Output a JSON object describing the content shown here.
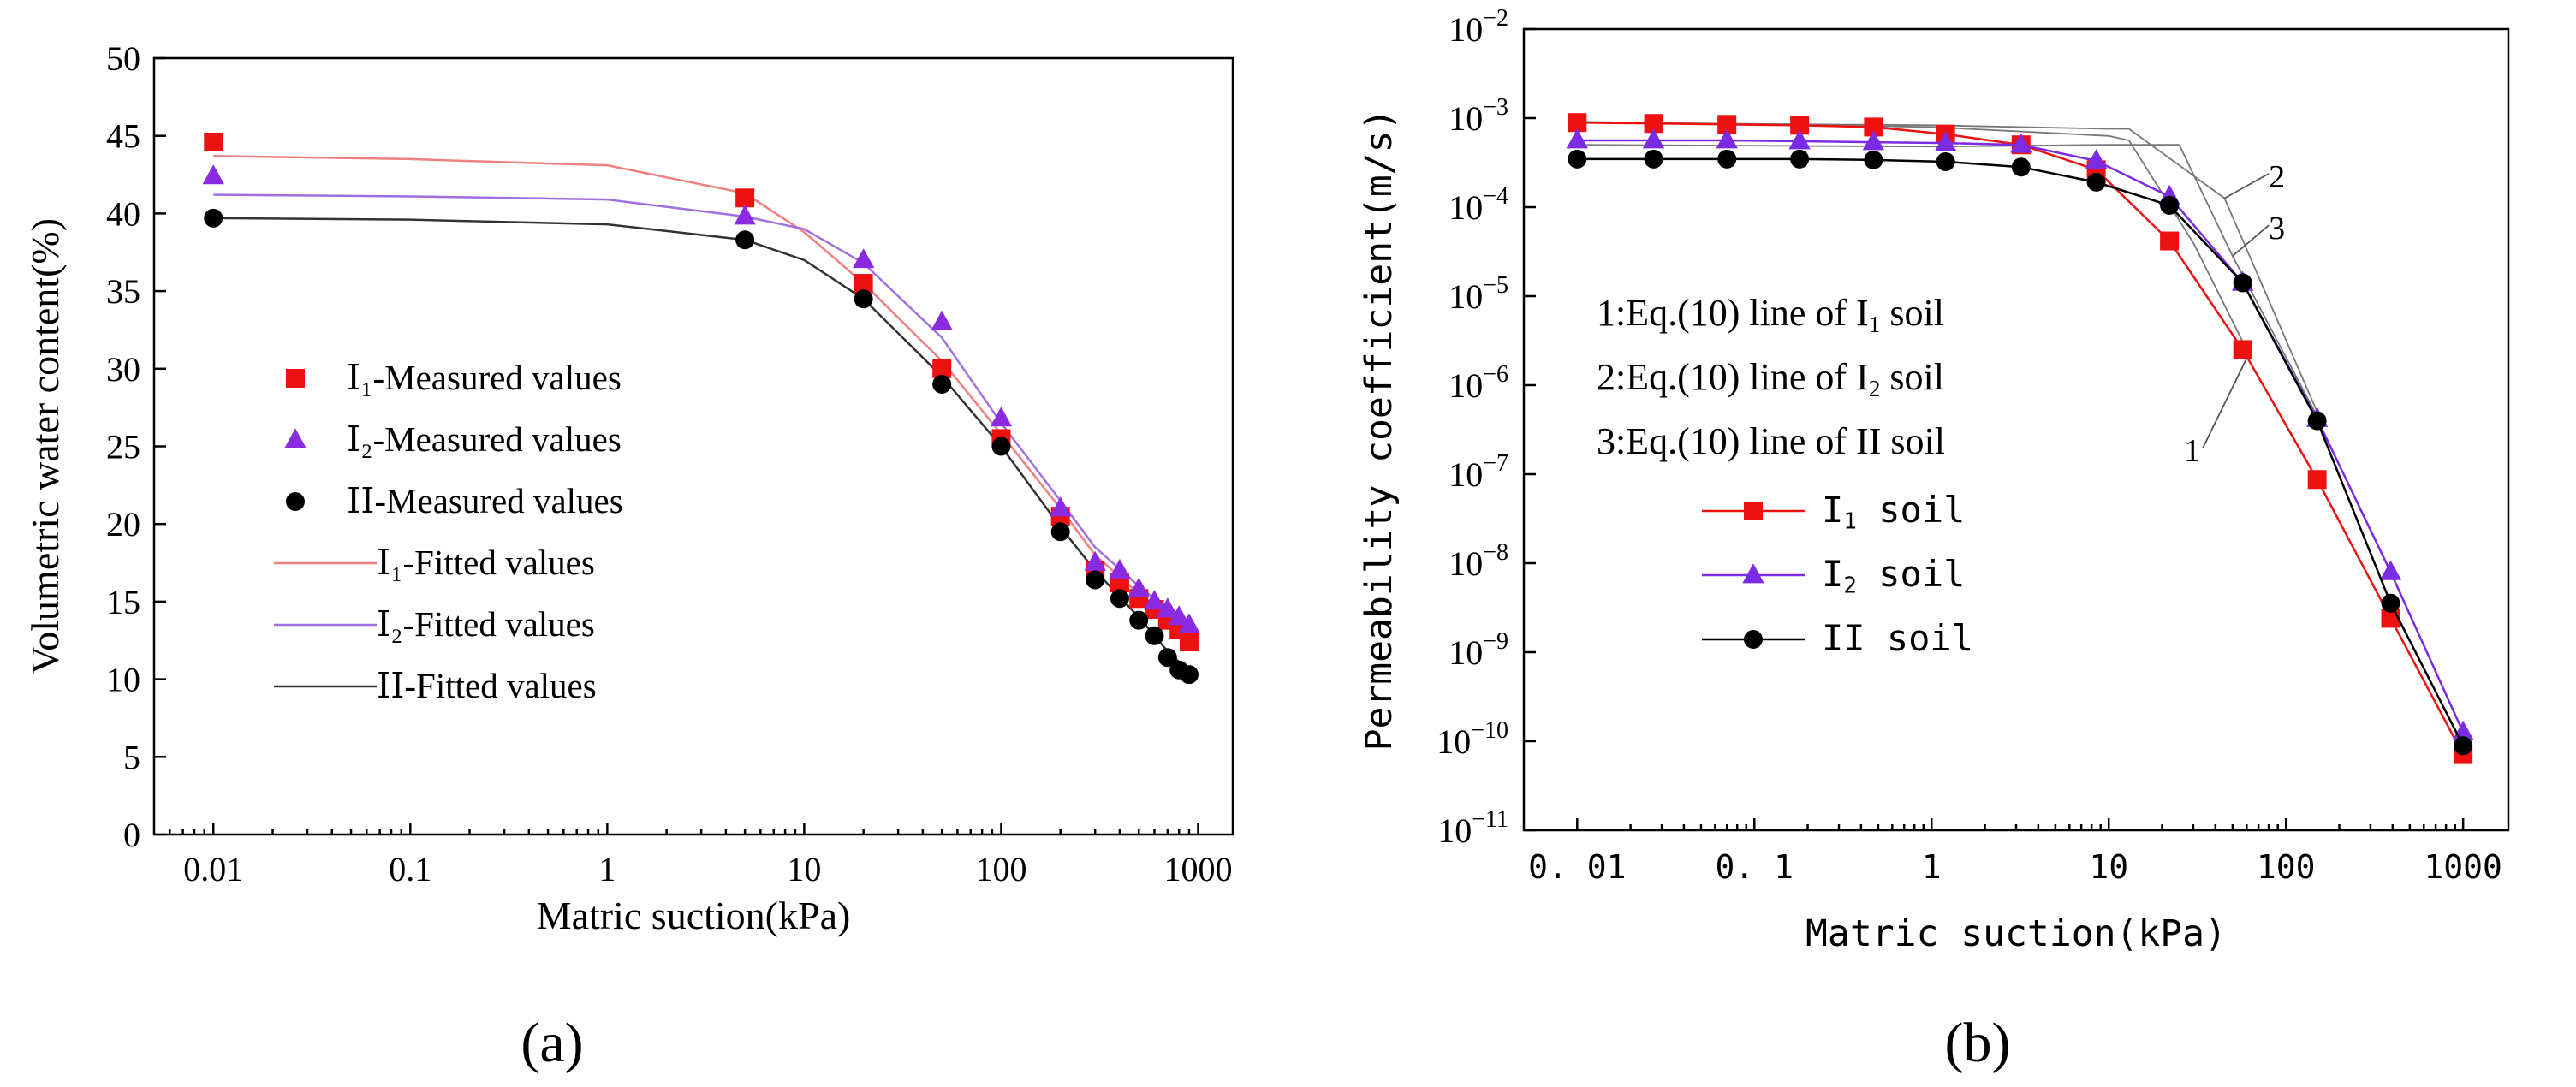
{
  "chart_data": [
    {
      "panel_label": "(a)",
      "type": "scatter",
      "xlabel": "Matric suction(kPa)",
      "ylabel": "Volumetric water content(%)",
      "xscale": "log",
      "xlim": [
        0.005,
        1500
      ],
      "ylim": [
        0,
        50
      ],
      "xticks": [
        {
          "v": 0.01,
          "label": "0.01"
        },
        {
          "v": 0.1,
          "label": "0.1"
        },
        {
          "v": 1,
          "label": "1"
        },
        {
          "v": 10,
          "label": "10"
        },
        {
          "v": 100,
          "label": "100"
        },
        {
          "v": 1000,
          "label": "1000"
        }
      ],
      "yticks": [
        {
          "v": 0,
          "label": "0"
        },
        {
          "v": 5,
          "label": "5"
        },
        {
          "v": 10,
          "label": "10"
        },
        {
          "v": 15,
          "label": "15"
        },
        {
          "v": 20,
          "label": "20"
        },
        {
          "v": 25,
          "label": "25"
        },
        {
          "v": 30,
          "label": "30"
        },
        {
          "v": 35,
          "label": "35"
        },
        {
          "v": 40,
          "label": "40"
        },
        {
          "v": 45,
          "label": "45"
        },
        {
          "v": 50,
          "label": "50"
        }
      ],
      "grid": false,
      "legend_position": "center-left",
      "series": [
        {
          "name": "Ⅰ₁-Measured values",
          "kind": "marker",
          "marker": "square",
          "color": "#ee1111",
          "points": [
            [
              0.01,
              44.6
            ],
            [
              5,
              41
            ],
            [
              20,
              35.5
            ],
            [
              50,
              30
            ],
            [
              100,
              25.5
            ],
            [
              200,
              20.5
            ],
            [
              300,
              17
            ],
            [
              400,
              16.2
            ],
            [
              500,
              15.2
            ],
            [
              600,
              14.5
            ],
            [
              700,
              13.8
            ],
            [
              800,
              13.2
            ],
            [
              900,
              12.4
            ]
          ]
        },
        {
          "name": "Ⅰ₂-Measured values",
          "kind": "marker",
          "marker": "triangle",
          "color": "#8a2be2",
          "points": [
            [
              0.01,
              42.4
            ],
            [
              5,
              39.8
            ],
            [
              20,
              37
            ],
            [
              50,
              33
            ],
            [
              100,
              26.8
            ],
            [
              200,
              21
            ],
            [
              300,
              17.5
            ],
            [
              400,
              17
            ],
            [
              500,
              15.8
            ],
            [
              600,
              15
            ],
            [
              700,
              14.5
            ],
            [
              800,
              14
            ],
            [
              900,
              13.5
            ]
          ]
        },
        {
          "name": "ⅠⅠ-Measured values",
          "kind": "marker",
          "marker": "circle",
          "color": "#000000",
          "points": [
            [
              0.01,
              39.7
            ],
            [
              5,
              38.3
            ],
            [
              20,
              34.5
            ],
            [
              50,
              29
            ],
            [
              100,
              25
            ],
            [
              200,
              19.5
            ],
            [
              300,
              16.4
            ],
            [
              400,
              15.2
            ],
            [
              500,
              13.8
            ],
            [
              600,
              12.8
            ],
            [
              700,
              11.4
            ],
            [
              800,
              10.6
            ],
            [
              900,
              10.3
            ]
          ]
        },
        {
          "name": "Ⅰ₁-Fitted values",
          "kind": "line",
          "color": "#f08080",
          "points": [
            [
              0.01,
              43.7
            ],
            [
              0.1,
              43.5
            ],
            [
              1,
              43.1
            ],
            [
              5,
              41.3
            ],
            [
              10,
              38.8
            ],
            [
              20,
              35.5
            ],
            [
              50,
              30.5
            ],
            [
              100,
              25.8
            ],
            [
              200,
              21
            ],
            [
              300,
              18
            ],
            [
              500,
              15.5
            ],
            [
              700,
              14
            ],
            [
              900,
              12.8
            ]
          ]
        },
        {
          "name": "Ⅰ₂-Fitted values",
          "kind": "line",
          "color": "#a070e0",
          "points": [
            [
              0.01,
              41.2
            ],
            [
              0.1,
              41.1
            ],
            [
              1,
              40.9
            ],
            [
              5,
              39.8
            ],
            [
              10,
              39
            ],
            [
              20,
              36.8
            ],
            [
              50,
              32
            ],
            [
              100,
              26.5
            ],
            [
              200,
              21.5
            ],
            [
              300,
              18.5
            ],
            [
              500,
              16
            ],
            [
              700,
              14.5
            ],
            [
              900,
              13.4
            ]
          ]
        },
        {
          "name": "ⅠⅠ-Fitted values",
          "kind": "line",
          "color": "#333333",
          "points": [
            [
              0.01,
              39.7
            ],
            [
              0.1,
              39.6
            ],
            [
              1,
              39.3
            ],
            [
              5,
              38.3
            ],
            [
              10,
              37
            ],
            [
              20,
              34.5
            ],
            [
              50,
              29.5
            ],
            [
              100,
              25
            ],
            [
              200,
              19.8
            ],
            [
              300,
              17
            ],
            [
              500,
              14
            ],
            [
              700,
              11.8
            ],
            [
              900,
              10.5
            ]
          ]
        }
      ]
    },
    {
      "panel_label": "(b)",
      "type": "line",
      "xlabel": "Matric suction(kPa)",
      "ylabel": "Permeability coefficient(m/s)",
      "xscale": "log",
      "yscale": "log",
      "xlim": [
        0.005,
        1800
      ],
      "ylim_exponent": [
        -11,
        -2
      ],
      "xticks": [
        {
          "v": 0.01,
          "label": "0. 01"
        },
        {
          "v": 0.1,
          "label": "0. 1"
        },
        {
          "v": 1,
          "label": "1"
        },
        {
          "v": 10,
          "label": "10"
        },
        {
          "v": 100,
          "label": "100"
        },
        {
          "v": 1000,
          "label": "1000"
        }
      ],
      "ytick_base": "10",
      "yticks": [
        {
          "e": -11,
          "exp": "−11"
        },
        {
          "e": -10,
          "exp": "−10"
        },
        {
          "e": -9,
          "exp": "−9"
        },
        {
          "e": -8,
          "exp": "−8"
        },
        {
          "e": -7,
          "exp": "−7"
        },
        {
          "e": -6,
          "exp": "−6"
        },
        {
          "e": -5,
          "exp": "−5"
        },
        {
          "e": -4,
          "exp": "−4"
        },
        {
          "e": -3,
          "exp": "−3"
        },
        {
          "e": -2,
          "exp": "−2"
        }
      ],
      "grid": false,
      "eq_legend": {
        "lines": [
          {
            "prefix": "1:Eq.(10) line of I",
            "sub": "1",
            "suffix": " soil"
          },
          {
            "prefix": "2:Eq.(10) line of I",
            "sub": "2",
            "suffix": " soil"
          },
          {
            "prefix": "3:Eq.(10) line of II soil",
            "sub": "",
            "suffix": ""
          }
        ]
      },
      "marker_legend": [
        {
          "prefix": "I",
          "sub": "1",
          "suffix": " soil"
        },
        {
          "prefix": "I",
          "sub": "2",
          "suffix": " soil"
        },
        {
          "prefix": "II soil",
          "sub": "",
          "suffix": ""
        }
      ],
      "callouts": [
        {
          "text": "1",
          "x": 34,
          "e": -6.8,
          "to_x": 60,
          "to_e": -5.7
        },
        {
          "text": "2",
          "x": 80,
          "e": -3.72,
          "to_x": 45,
          "to_e": -3.9
        },
        {
          "text": "3",
          "x": 80,
          "e": -4.3,
          "to_x": 50,
          "to_e": -4.55
        }
      ],
      "series": [
        {
          "name": "I₁ soil",
          "marker": "square",
          "color": "#ee1111",
          "points": [
            [
              0.01,
              -3.05
            ],
            [
              0.027,
              -3.06
            ],
            [
              0.07,
              -3.07
            ],
            [
              0.18,
              -3.08
            ],
            [
              0.47,
              -3.1
            ],
            [
              1.2,
              -3.18
            ],
            [
              3.2,
              -3.3
            ],
            [
              8.5,
              -3.58
            ],
            [
              22,
              -4.38
            ],
            [
              57,
              -5.6
            ],
            [
              150,
              -7.06
            ],
            [
              390,
              -8.62
            ],
            [
              1000,
              -10.15
            ]
          ]
        },
        {
          "name": "I₂ soil",
          "marker": "triangle",
          "color": "#7b2be2",
          "points": [
            [
              0.01,
              -3.25
            ],
            [
              0.027,
              -3.25
            ],
            [
              0.07,
              -3.25
            ],
            [
              0.18,
              -3.26
            ],
            [
              0.47,
              -3.27
            ],
            [
              1.2,
              -3.28
            ],
            [
              3.2,
              -3.3
            ],
            [
              8.5,
              -3.48
            ],
            [
              22,
              -3.88
            ],
            [
              57,
              -4.85
            ],
            [
              150,
              -6.38
            ],
            [
              390,
              -8.1
            ],
            [
              1000,
              -9.9
            ]
          ]
        },
        {
          "name": "II soil",
          "marker": "circle",
          "color": "#000000",
          "points": [
            [
              0.01,
              -3.46
            ],
            [
              0.027,
              -3.46
            ],
            [
              0.07,
              -3.46
            ],
            [
              0.18,
              -3.46
            ],
            [
              0.47,
              -3.47
            ],
            [
              1.2,
              -3.49
            ],
            [
              3.2,
              -3.55
            ],
            [
              8.5,
              -3.72
            ],
            [
              22,
              -3.98
            ],
            [
              57,
              -4.85
            ],
            [
              150,
              -6.4
            ],
            [
              390,
              -8.45
            ],
            [
              1000,
              -10.05
            ]
          ]
        },
        {
          "name": "1",
          "kind": "eq-line",
          "color": "#777777",
          "points": [
            [
              0.01,
              -3.04
            ],
            [
              1,
              -3.1
            ],
            [
              10,
              -3.2
            ],
            [
              13,
              -3.25
            ],
            [
              30,
              -4.4
            ],
            [
              60,
              -5.6
            ]
          ]
        },
        {
          "name": "2",
          "kind": "eq-line",
          "color": "#777777",
          "points": [
            [
              0.01,
              -3.05
            ],
            [
              1,
              -3.08
            ],
            [
              10,
              -3.12
            ],
            [
              13,
              -3.12
            ],
            [
              45,
              -3.9
            ],
            [
              150,
              -6.3
            ]
          ]
        },
        {
          "name": "3",
          "kind": "eq-line",
          "color": "#777777",
          "points": [
            [
              0.01,
              -3.3
            ],
            [
              1,
              -3.32
            ],
            [
              10,
              -3.3
            ],
            [
              25,
              -3.3
            ],
            [
              50,
              -4.55
            ],
            [
              150,
              -6.35
            ]
          ]
        }
      ]
    }
  ]
}
